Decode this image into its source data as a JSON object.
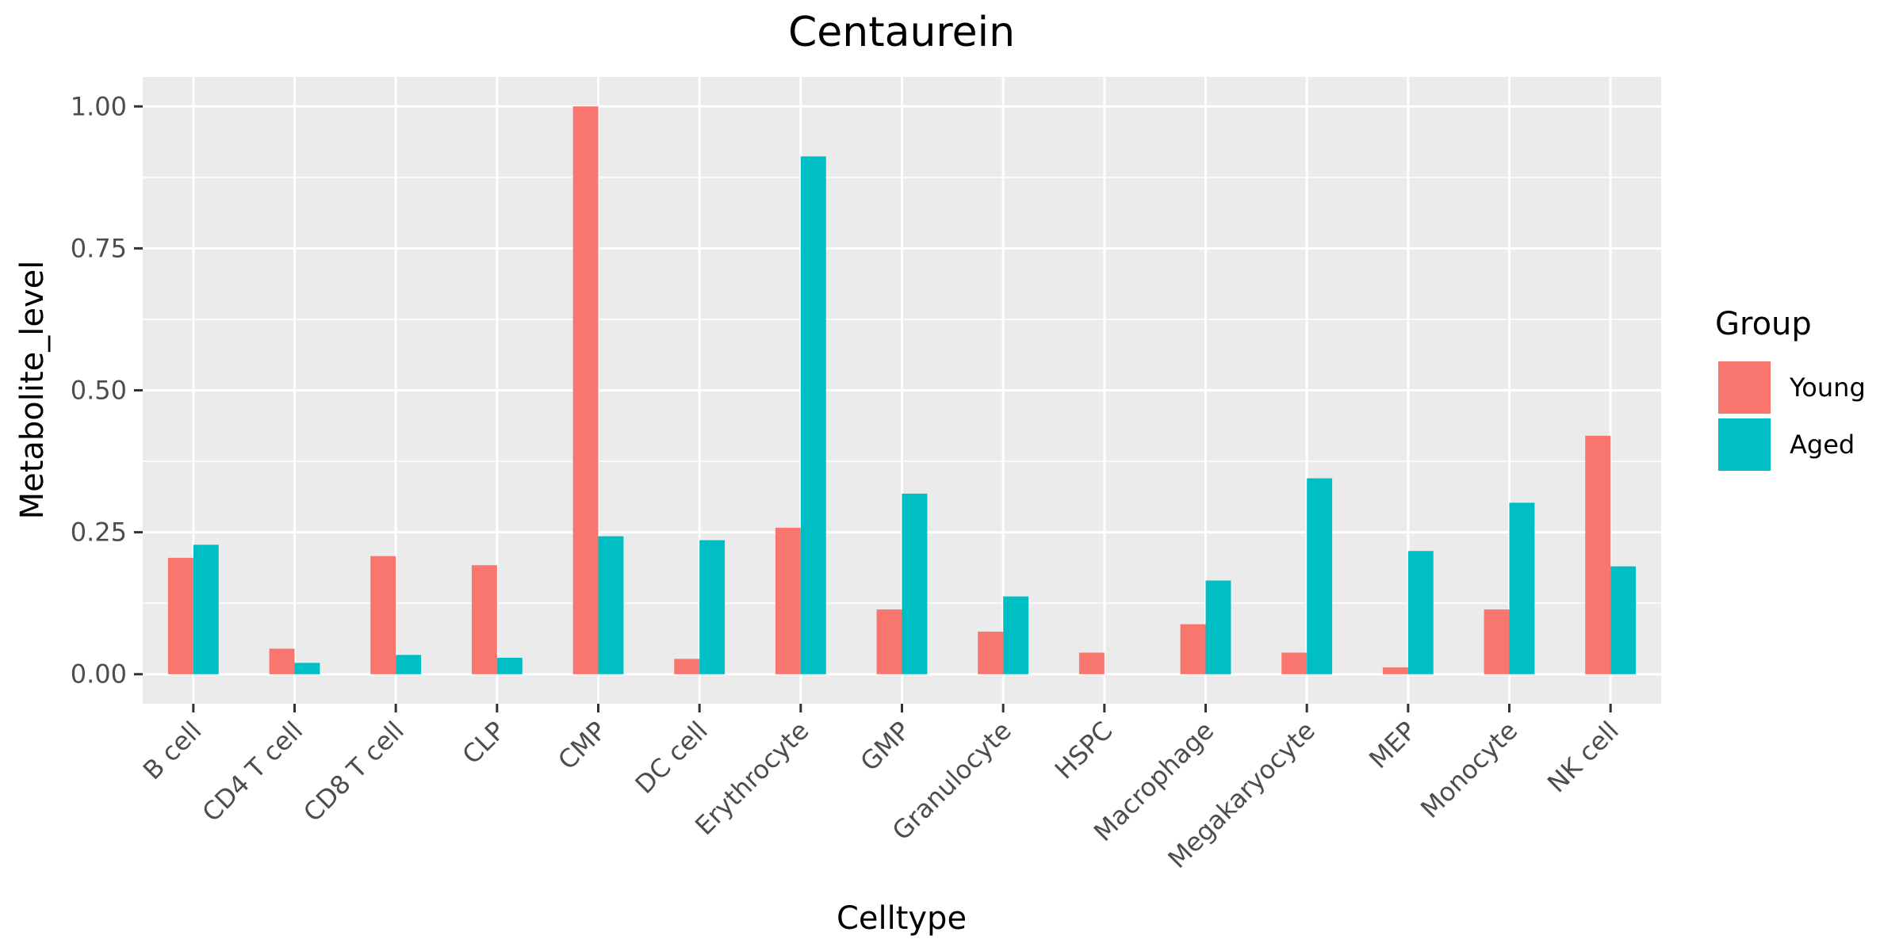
{
  "chart_data": {
    "type": "bar",
    "title": "Centaurein",
    "xlabel": "Celltype",
    "ylabel": "Metabolite_level",
    "categories": [
      "B cell",
      "CD4 T cell",
      "CD8 T cell",
      "CLP",
      "CMP",
      "DC cell",
      "Erythrocyte",
      "GMP",
      "Granulocyte",
      "HSPC",
      "Macrophage",
      "Megakaryocyte",
      "MEP",
      "Monocyte",
      "NK cell"
    ],
    "series": [
      {
        "name": "Young",
        "color": "#F8766D",
        "values": [
          0.205,
          0.045,
          0.208,
          0.192,
          1.0,
          0.027,
          0.258,
          0.114,
          0.075,
          0.038,
          0.088,
          0.038,
          0.012,
          0.114,
          0.42
        ]
      },
      {
        "name": "Aged",
        "color": "#00BFC4",
        "values": [
          0.228,
          0.02,
          0.034,
          0.029,
          0.243,
          0.236,
          0.912,
          0.318,
          0.137,
          0.0,
          0.165,
          0.345,
          0.217,
          0.302,
          0.19
        ]
      }
    ],
    "ylim": [
      -0.052,
      1.052
    ],
    "yticks": [
      0.0,
      0.25,
      0.5,
      0.75,
      1.0
    ],
    "ytick_labels": [
      "0.00",
      "0.25",
      "0.50",
      "0.75",
      "1.00"
    ],
    "grid": true,
    "legend": {
      "title": "Group",
      "position": "right"
    },
    "panel_background": "#EBEBEB"
  }
}
